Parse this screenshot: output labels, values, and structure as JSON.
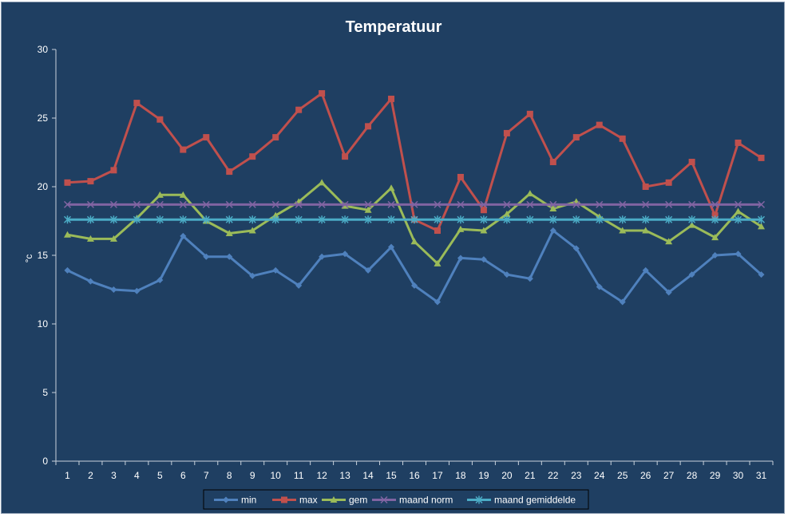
{
  "chart_data": {
    "type": "line",
    "title": "Temperatuur",
    "xlabel": "",
    "ylabel": "°c",
    "ylim": [
      0,
      30
    ],
    "yticks": [
      0,
      5,
      10,
      15,
      20,
      25,
      30
    ],
    "grid": false,
    "legend_position": "bottom",
    "background_color": "#1f3f62",
    "categories": [
      "1",
      "2",
      "3",
      "4",
      "5",
      "6",
      "7",
      "8",
      "9",
      "10",
      "11",
      "12",
      "13",
      "14",
      "15",
      "16",
      "17",
      "18",
      "19",
      "20",
      "21",
      "22",
      "23",
      "24",
      "25",
      "26",
      "27",
      "28",
      "29",
      "30",
      "31"
    ],
    "series": [
      {
        "name": "min",
        "color": "#4f81bd",
        "marker": "diamond",
        "values": [
          13.9,
          13.1,
          12.5,
          12.4,
          13.2,
          16.4,
          14.9,
          14.9,
          13.5,
          13.9,
          12.8,
          14.9,
          15.1,
          13.9,
          15.6,
          12.8,
          11.6,
          14.8,
          14.7,
          13.6,
          13.3,
          16.8,
          15.5,
          12.7,
          11.6,
          13.9,
          12.3,
          13.6,
          15.0,
          15.1,
          13.6
        ]
      },
      {
        "name": "max",
        "color": "#c0504d",
        "marker": "square",
        "values": [
          20.3,
          20.4,
          21.2,
          26.1,
          24.9,
          22.7,
          23.6,
          21.1,
          22.2,
          23.6,
          25.6,
          26.8,
          22.2,
          24.4,
          26.4,
          17.6,
          16.8,
          20.7,
          18.3,
          23.9,
          25.3,
          21.8,
          23.6,
          24.5,
          23.5,
          20.0,
          20.3,
          21.8,
          17.9,
          23.2,
          22.1
        ]
      },
      {
        "name": "gem",
        "color": "#9bbb59",
        "marker": "triangle",
        "values": [
          16.5,
          16.2,
          16.2,
          17.7,
          19.4,
          19.4,
          17.5,
          16.6,
          16.8,
          17.9,
          18.9,
          20.3,
          18.6,
          18.3,
          19.9,
          16.0,
          14.4,
          16.9,
          16.8,
          18.0,
          19.5,
          18.4,
          18.9,
          17.8,
          16.8,
          16.8,
          16.0,
          17.2,
          16.3,
          18.2,
          17.1
        ]
      },
      {
        "name": "maand norm",
        "color": "#8064a2",
        "marker": "x",
        "values": [
          18.7,
          18.7,
          18.7,
          18.7,
          18.7,
          18.7,
          18.7,
          18.7,
          18.7,
          18.7,
          18.7,
          18.7,
          18.7,
          18.7,
          18.7,
          18.7,
          18.7,
          18.7,
          18.7,
          18.7,
          18.7,
          18.7,
          18.7,
          18.7,
          18.7,
          18.7,
          18.7,
          18.7,
          18.7,
          18.7,
          18.7
        ]
      },
      {
        "name": "maand gemiddelde",
        "color": "#4bacc6",
        "marker": "star",
        "values": [
          17.6,
          17.6,
          17.6,
          17.6,
          17.6,
          17.6,
          17.6,
          17.6,
          17.6,
          17.6,
          17.6,
          17.6,
          17.6,
          17.6,
          17.6,
          17.6,
          17.6,
          17.6,
          17.6,
          17.6,
          17.6,
          17.6,
          17.6,
          17.6,
          17.6,
          17.6,
          17.6,
          17.6,
          17.6,
          17.6,
          17.6
        ]
      }
    ]
  }
}
